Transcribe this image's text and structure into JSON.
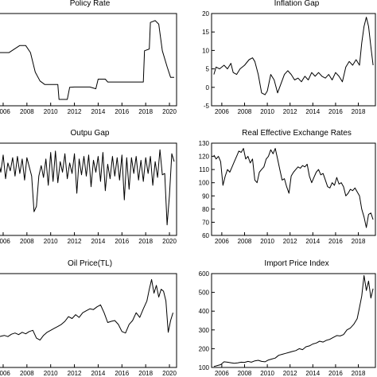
{
  "colors": {
    "line": "#000000",
    "frame": "#000000",
    "background": "#ffffff"
  },
  "chart_data": [
    {
      "type": "line",
      "title": "Policy Rate",
      "x": [
        2004.0,
        2005.0,
        2005.6,
        2006.5,
        2007.4,
        2007.9,
        2008.3,
        2008.7,
        2009.1,
        2009.5,
        2010.0,
        2010.6,
        2010.7,
        2011.4,
        2011.6,
        2012.0,
        2013.3,
        2013.8,
        2014.0,
        2014.6,
        2014.8,
        2017.8,
        2017.9,
        2018.3,
        2018.4,
        2018.8,
        2019.1,
        2019.4,
        2019.8,
        2020.1,
        2020.4
      ],
      "values": [
        12.5,
        13.0,
        15.0,
        15.0,
        17.0,
        17.0,
        15.0,
        9.5,
        7.0,
        6.0,
        6.0,
        6.0,
        1.8,
        1.8,
        5.2,
        5.3,
        5.3,
        4.8,
        7.5,
        7.5,
        6.7,
        6.7,
        15.5,
        16.0,
        23.5,
        24.0,
        23.0,
        15.5,
        11.0,
        8.0,
        8.0
      ]
    },
    {
      "type": "line",
      "title": "Inflation Gap",
      "x": [
        2005.3,
        2005.5,
        2005.8,
        2006.2,
        2006.5,
        2006.8,
        2007.0,
        2007.3,
        2007.6,
        2008.0,
        2008.4,
        2008.7,
        2008.9,
        2009.2,
        2009.5,
        2009.8,
        2010.0,
        2010.3,
        2010.6,
        2010.9,
        2011.2,
        2011.5,
        2011.8,
        2012.1,
        2012.4,
        2012.7,
        2013.0,
        2013.3,
        2013.6,
        2013.9,
        2014.2,
        2014.5,
        2014.8,
        2015.1,
        2015.4,
        2015.7,
        2016.0,
        2016.3,
        2016.6,
        2016.9,
        2017.2,
        2017.5,
        2017.8,
        2018.1,
        2018.3,
        2018.5,
        2018.7,
        2018.9,
        2019.1,
        2019.3
      ],
      "values": [
        3.5,
        5.5,
        5.0,
        6.0,
        5.0,
        6.5,
        4.0,
        3.5,
        5.0,
        6.0,
        7.5,
        8.0,
        7.0,
        3.5,
        -1.5,
        -2.0,
        -1.0,
        3.5,
        2.0,
        -1.5,
        1.0,
        3.5,
        4.5,
        3.5,
        2.0,
        2.5,
        1.5,
        3.0,
        2.0,
        4.0,
        3.0,
        4.0,
        3.0,
        2.5,
        3.5,
        2.0,
        4.0,
        3.0,
        1.5,
        5.5,
        7.0,
        6.0,
        7.5,
        6.0,
        12.0,
        16.5,
        19.0,
        16.5,
        11.0,
        6.0
      ]
    },
    {
      "type": "line",
      "title": "Outpu Gap",
      "x": [
        2004.0,
        2004.2,
        2004.4,
        2004.6,
        2004.8,
        2005.0,
        2005.2,
        2005.4,
        2005.6,
        2005.8,
        2006.0,
        2006.2,
        2006.4,
        2006.6,
        2006.8,
        2007.0,
        2007.2,
        2007.4,
        2007.6,
        2007.8,
        2008.0,
        2008.2,
        2008.4,
        2008.6,
        2008.8,
        2009.0,
        2009.2,
        2009.4,
        2009.6,
        2009.8,
        2010.0,
        2010.2,
        2010.4,
        2010.6,
        2010.8,
        2011.0,
        2011.2,
        2011.4,
        2011.6,
        2011.8,
        2012.0,
        2012.2,
        2012.4,
        2012.6,
        2012.8,
        2013.0,
        2013.2,
        2013.4,
        2013.6,
        2013.8,
        2014.0,
        2014.2,
        2014.4,
        2014.6,
        2014.8,
        2015.0,
        2015.2,
        2015.4,
        2015.6,
        2015.8,
        2016.0,
        2016.2,
        2016.4,
        2016.6,
        2016.8,
        2017.0,
        2017.2,
        2017.4,
        2017.6,
        2017.8,
        2018.0,
        2018.2,
        2018.4,
        2018.6,
        2018.8,
        2019.0,
        2019.2,
        2019.4,
        2019.6,
        2019.8,
        2020.0,
        2020.2,
        2020.4
      ],
      "values": [
        0.5,
        -0.8,
        0.9,
        -0.3,
        0.7,
        -0.6,
        1.0,
        -0.4,
        0.6,
        -0.2,
        1.1,
        -0.7,
        0.5,
        -0.1,
        0.9,
        -0.5,
        1.0,
        -0.3,
        0.8,
        -0.8,
        0.9,
        0.2,
        -0.5,
        -3.2,
        -2.8,
        -0.5,
        0.3,
        -0.6,
        0.8,
        -1.2,
        1.3,
        -0.9,
        1.4,
        -1.0,
        0.6,
        -0.2,
        1.2,
        -0.7,
        0.5,
        -0.3,
        1.2,
        -1.8,
        0.8,
        -0.4,
        1.0,
        -0.5,
        1.1,
        -1.3,
        0.7,
        -0.2,
        1.0,
        -0.9,
        1.3,
        -1.6,
        0.4,
        -0.7,
        1.0,
        -0.5,
        0.9,
        -0.8,
        1.1,
        -2.3,
        0.9,
        -1.5,
        0.9,
        -0.3,
        1.0,
        -0.8,
        0.7,
        -0.9,
        0.9,
        -0.3,
        1.0,
        -1.2,
        0.6,
        -0.6,
        1.5,
        -0.4,
        -0.3,
        -4.2,
        -2.0,
        1.2,
        0.6
      ]
    },
    {
      "type": "line",
      "title": "Real Effective Exchange Rates",
      "x": [
        2005.3,
        2005.5,
        2005.7,
        2005.9,
        2006.1,
        2006.3,
        2006.5,
        2006.7,
        2006.9,
        2007.1,
        2007.3,
        2007.5,
        2007.7,
        2007.9,
        2008.1,
        2008.3,
        2008.5,
        2008.7,
        2008.9,
        2009.1,
        2009.3,
        2009.5,
        2009.7,
        2009.9,
        2010.1,
        2010.3,
        2010.5,
        2010.7,
        2010.9,
        2011.1,
        2011.3,
        2011.5,
        2011.7,
        2011.9,
        2012.1,
        2012.3,
        2012.5,
        2012.7,
        2012.9,
        2013.1,
        2013.3,
        2013.5,
        2013.7,
        2013.9,
        2014.1,
        2014.3,
        2014.5,
        2014.7,
        2014.9,
        2015.1,
        2015.3,
        2015.5,
        2015.7,
        2015.9,
        2016.1,
        2016.3,
        2016.5,
        2016.7,
        2016.9,
        2017.1,
        2017.3,
        2017.5,
        2017.7,
        2017.9,
        2018.1,
        2018.3,
        2018.5,
        2018.7,
        2018.9,
        2019.1,
        2019.3
      ],
      "values": [
        121,
        118,
        120,
        116,
        98,
        105,
        110,
        108,
        112,
        116,
        120,
        124,
        123,
        126,
        118,
        120,
        115,
        118,
        102,
        100,
        108,
        110,
        112,
        118,
        120,
        125,
        122,
        126,
        118,
        110,
        102,
        103,
        97,
        92,
        105,
        108,
        110,
        112,
        111,
        113,
        112,
        114,
        105,
        100,
        104,
        108,
        110,
        106,
        107,
        102,
        97,
        96,
        100,
        98,
        104,
        99,
        100,
        97,
        90,
        92,
        95,
        94,
        96,
        93,
        90,
        80,
        74,
        66,
        76,
        77,
        72
      ]
    },
    {
      "type": "line",
      "title": "Oil Price(TL)",
      "x": [
        2004.0,
        2004.3,
        2004.6,
        2004.9,
        2005.2,
        2005.5,
        2005.8,
        2006.1,
        2006.4,
        2006.7,
        2007.0,
        2007.3,
        2007.6,
        2007.9,
        2008.2,
        2008.5,
        2008.8,
        2009.1,
        2009.4,
        2009.7,
        2010.0,
        2010.3,
        2010.6,
        2010.9,
        2011.2,
        2011.5,
        2011.8,
        2012.1,
        2012.4,
        2012.7,
        2013.0,
        2013.3,
        2013.6,
        2013.9,
        2014.2,
        2014.5,
        2014.8,
        2015.1,
        2015.4,
        2015.7,
        2016.0,
        2016.3,
        2016.6,
        2016.9,
        2017.2,
        2017.5,
        2017.8,
        2018.1,
        2018.3,
        2018.5,
        2018.7,
        2018.9,
        2019.1,
        2019.3,
        2019.5,
        2019.7,
        2019.9,
        2020.1,
        2020.3
      ],
      "values": [
        70,
        72,
        75,
        73,
        78,
        76,
        80,
        82,
        79,
        85,
        88,
        84,
        90,
        86,
        92,
        95,
        75,
        70,
        82,
        90,
        95,
        100,
        105,
        110,
        118,
        130,
        125,
        135,
        128,
        140,
        145,
        150,
        148,
        155,
        160,
        140,
        115,
        118,
        120,
        110,
        92,
        88,
        110,
        120,
        140,
        128,
        150,
        170,
        200,
        225,
        190,
        210,
        180,
        200,
        195,
        170,
        90,
        120,
        140
      ]
    },
    {
      "type": "line",
      "title": "Import Price Index",
      "ylim": [
        100,
        600
      ],
      "x": [
        2005.3,
        2005.6,
        2005.9,
        2006.2,
        2006.5,
        2006.8,
        2007.1,
        2007.4,
        2007.7,
        2008.0,
        2008.3,
        2008.6,
        2008.9,
        2009.2,
        2009.5,
        2009.8,
        2010.1,
        2010.4,
        2010.7,
        2011.0,
        2011.3,
        2011.6,
        2011.9,
        2012.2,
        2012.5,
        2012.8,
        2013.1,
        2013.4,
        2013.7,
        2014.0,
        2014.3,
        2014.6,
        2014.9,
        2015.2,
        2015.5,
        2015.8,
        2016.1,
        2016.4,
        2016.7,
        2017.0,
        2017.3,
        2017.6,
        2017.9,
        2018.1,
        2018.3,
        2018.5,
        2018.7,
        2018.9,
        2019.1,
        2019.3
      ],
      "values": [
        105,
        110,
        115,
        130,
        128,
        125,
        122,
        124,
        128,
        127,
        132,
        128,
        135,
        138,
        132,
        130,
        140,
        145,
        150,
        165,
        170,
        175,
        180,
        185,
        190,
        200,
        195,
        210,
        215,
        225,
        230,
        240,
        235,
        245,
        250,
        260,
        270,
        268,
        275,
        300,
        310,
        330,
        360,
        420,
        480,
        590,
        510,
        560,
        470,
        520
      ]
    }
  ],
  "axes": [
    {
      "x_ticks": [
        "2006",
        "2008",
        "2010",
        "2012",
        "2014",
        "2016",
        "2018",
        "2020"
      ],
      "y_ticks": []
    },
    {
      "x_ticks": [
        "2006",
        "2008",
        "2010",
        "2012",
        "2014",
        "2016",
        "2018"
      ],
      "y_ticks": [
        "20",
        "15",
        "10",
        "5",
        "0",
        "-5"
      ]
    },
    {
      "x_ticks": [
        "2006",
        "2008",
        "2010",
        "2012",
        "2014",
        "2016",
        "2018",
        "2020"
      ],
      "y_ticks": []
    },
    {
      "x_ticks": [
        "2006",
        "2008",
        "2010",
        "2012",
        "2014",
        "2016",
        "2018"
      ],
      "y_ticks": [
        "130",
        "120",
        "110",
        "100",
        "90",
        "80",
        "70",
        "60"
      ]
    },
    {
      "x_ticks": [
        "2006",
        "2008",
        "2010",
        "2012",
        "2014",
        "2016",
        "2018",
        "2020"
      ],
      "y_ticks": []
    },
    {
      "x_ticks": [
        "2006",
        "2008",
        "2010",
        "2012",
        "2014",
        "2016",
        "2018"
      ],
      "y_ticks": [
        "600",
        "500",
        "400",
        "300",
        "200",
        "100"
      ]
    }
  ]
}
